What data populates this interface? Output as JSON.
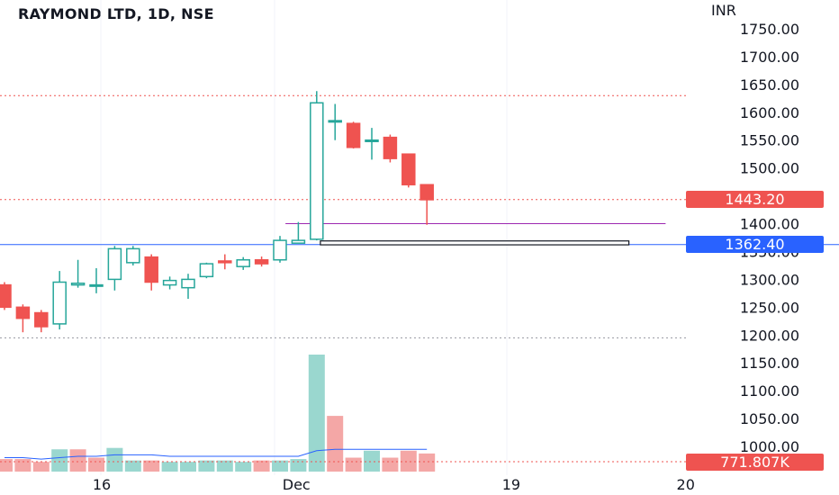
{
  "header": {
    "title": "RAYMOND LTD, 1D, NSE",
    "currency": "INR"
  },
  "colors": {
    "up": "#26a69a",
    "down": "#ef5350",
    "up_volume": "#9ad7cf",
    "down_volume": "#f4a7a6",
    "ma": "#2962ff",
    "last_price": "#ef5350",
    "support_price": "#2962ff",
    "hline_purple": "#9c27b0"
  },
  "labels": {
    "last_price": "1443.20",
    "support_price": "1362.40",
    "volume": "771.807K"
  },
  "chart_data": {
    "type": "candlestick",
    "title": "RAYMOND LTD, 1D, NSE",
    "y_axis": {
      "unit": "INR",
      "ticks": [
        "1750.00",
        "1700.00",
        "1650.00",
        "1600.00",
        "1550.00",
        "1500.00",
        "1400.00",
        "1350.00",
        "1300.00",
        "1250.00",
        "1200.00",
        "1150.00",
        "1100.00",
        "1050.00",
        "1000.00"
      ],
      "ylim": [
        960,
        1780
      ]
    },
    "x_axis": {
      "ticks": [
        {
          "label": "16",
          "index": 5
        },
        {
          "label": "Dec",
          "index": 15.6
        },
        {
          "label": "19",
          "index": 27.3
        },
        {
          "label": "20",
          "index": 36.8
        }
      ]
    },
    "candles": [
      {
        "o": 1290,
        "h": 1295,
        "l": 1245,
        "c": 1250
      },
      {
        "o": 1250,
        "h": 1255,
        "l": 1205,
        "c": 1230
      },
      {
        "o": 1240,
        "h": 1245,
        "l": 1205,
        "c": 1215
      },
      {
        "o": 1220,
        "h": 1315,
        "l": 1210,
        "c": 1295
      },
      {
        "o": 1290,
        "h": 1335,
        "l": 1285,
        "c": 1293
      },
      {
        "o": 1290,
        "h": 1320,
        "l": 1275,
        "c": 1290
      },
      {
        "o": 1300,
        "h": 1360,
        "l": 1280,
        "c": 1355
      },
      {
        "o": 1330,
        "h": 1360,
        "l": 1325,
        "c": 1355
      },
      {
        "o": 1340,
        "h": 1345,
        "l": 1280,
        "c": 1295
      },
      {
        "o": 1290,
        "h": 1305,
        "l": 1282,
        "c": 1298
      },
      {
        "o": 1285,
        "h": 1310,
        "l": 1265,
        "c": 1300
      },
      {
        "o": 1305,
        "h": 1330,
        "l": 1302,
        "c": 1328
      },
      {
        "o": 1333,
        "h": 1345,
        "l": 1318,
        "c": 1330
      },
      {
        "o": 1323,
        "h": 1340,
        "l": 1317,
        "c": 1335
      },
      {
        "o": 1335,
        "h": 1341,
        "l": 1323,
        "c": 1328
      },
      {
        "o": 1335,
        "h": 1378,
        "l": 1330,
        "c": 1370
      },
      {
        "o": 1365,
        "h": 1403,
        "l": 1365,
        "c": 1370
      },
      {
        "o": 1372,
        "h": 1638,
        "l": 1370,
        "c": 1617
      },
      {
        "o": 1585,
        "h": 1615,
        "l": 1550,
        "c": 1585
      },
      {
        "o": 1580,
        "h": 1583,
        "l": 1535,
        "c": 1537
      },
      {
        "o": 1548,
        "h": 1572,
        "l": 1515,
        "c": 1550
      },
      {
        "o": 1555,
        "h": 1560,
        "l": 1510,
        "c": 1517
      },
      {
        "o": 1525,
        "h": 1525,
        "l": 1465,
        "c": 1470
      },
      {
        "o": 1470,
        "h": 1470,
        "l": 1398,
        "c": 1443
      }
    ],
    "volume": {
      "ylim": [
        0,
        9
      ],
      "values": [
        0.9,
        0.9,
        0.7,
        1.6,
        1.6,
        1.0,
        1.7,
        0.8,
        0.8,
        0.7,
        0.7,
        0.8,
        0.8,
        0.7,
        0.8,
        0.8,
        0.9,
        8.4,
        4.0,
        1.0,
        1.5,
        1.0,
        1.5,
        1.3
      ],
      "directions": [
        "down",
        "down",
        "down",
        "up",
        "down",
        "down",
        "up",
        "up",
        "down",
        "up",
        "up",
        "up",
        "up",
        "up",
        "down",
        "up",
        "up",
        "up",
        "down",
        "down",
        "up",
        "down",
        "down",
        "down"
      ],
      "ma": [
        1.0,
        1.0,
        0.9,
        1.0,
        1.1,
        1.1,
        1.2,
        1.2,
        1.2,
        1.1,
        1.1,
        1.1,
        1.1,
        1.1,
        1.1,
        1.1,
        1.1,
        1.5,
        1.6,
        1.6,
        1.6,
        1.6,
        1.6,
        1.6
      ],
      "last_label": "771.807K"
    },
    "horizontal_lines": [
      {
        "price": 1630,
        "style": "dotted",
        "color": "red"
      },
      {
        "price": 1443.2,
        "style": "dotted",
        "color": "red"
      },
      {
        "price": 1195,
        "style": "dotted",
        "color": "gray"
      },
      {
        "price": 1400,
        "style": "solid",
        "color": "purple",
        "from_index": 15.3,
        "to_index": 36
      },
      {
        "price": 1362.4,
        "style": "solid",
        "color": "blue"
      }
    ],
    "rectangle": {
      "price_top": 1369,
      "price_bottom": 1362,
      "from_index": 17.2,
      "to_index": 34
    },
    "grid": true,
    "legend": "none"
  }
}
